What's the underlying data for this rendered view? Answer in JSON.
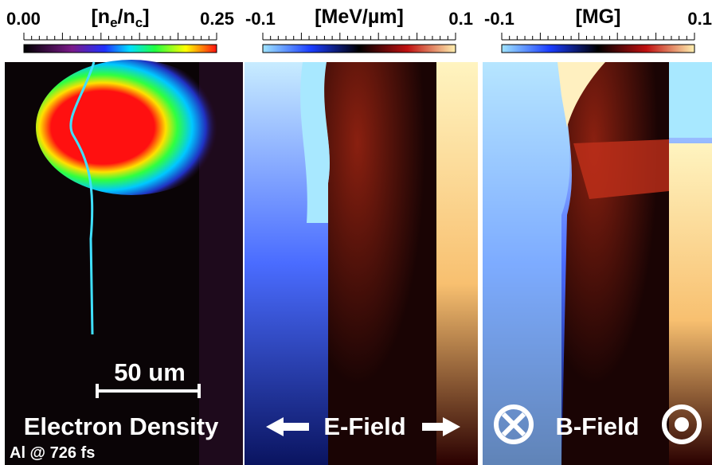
{
  "panels": [
    {
      "colorbar": {
        "min": "0.00",
        "unit_parts": [
          "[n",
          "e",
          "/n",
          "c",
          "]"
        ],
        "max": "0.25"
      },
      "scale_bar": "50 um",
      "caption": "Electron Density",
      "note": "Al @ 726 fs"
    },
    {
      "colorbar": {
        "min": "-0.1",
        "unit_parts": [
          "[MeV/µm]"
        ],
        "max": "0.1"
      },
      "caption": "E-Field"
    },
    {
      "colorbar": {
        "min": "-0.1",
        "unit_parts": [
          "[MG]"
        ],
        "max": "0.1"
      },
      "caption": "B-Field"
    }
  ]
}
